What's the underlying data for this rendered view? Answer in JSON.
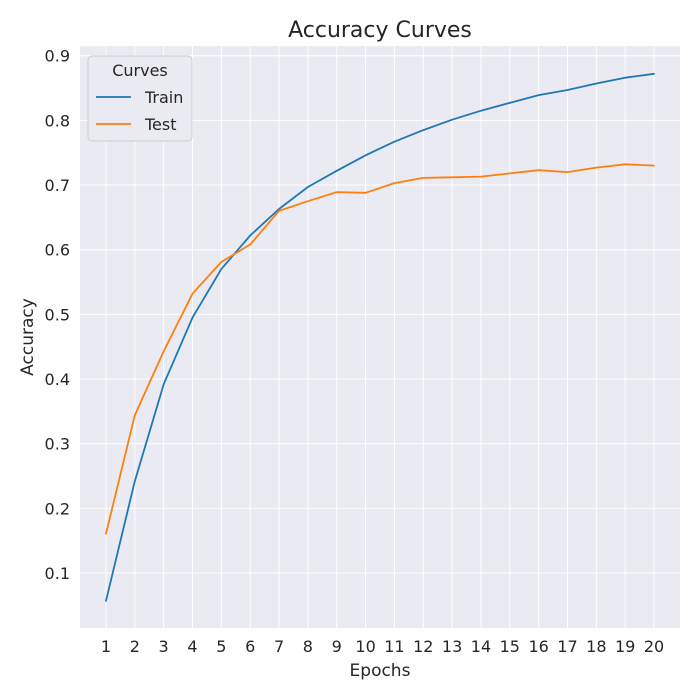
{
  "chart_data": {
    "type": "line",
    "title": "Accuracy Curves",
    "xlabel": "Epochs",
    "ylabel": "Accuracy",
    "x": [
      1,
      2,
      3,
      4,
      5,
      6,
      7,
      8,
      9,
      10,
      11,
      12,
      13,
      14,
      15,
      16,
      17,
      18,
      19,
      20
    ],
    "x_ticks": [
      "1",
      "2",
      "3",
      "4",
      "5",
      "6",
      "7",
      "8",
      "9",
      "10",
      "11",
      "12",
      "13",
      "14",
      "15",
      "16",
      "17",
      "18",
      "19",
      "20"
    ],
    "y_ticks": [
      "0.1",
      "0.2",
      "0.3",
      "0.4",
      "0.5",
      "0.6",
      "0.7",
      "0.8",
      "0.9"
    ],
    "xlim": [
      0.1,
      20.9
    ],
    "ylim": [
      0.015,
      0.915
    ],
    "grid": true,
    "legend": {
      "title": "Curves",
      "placement": "top-left"
    },
    "series": [
      {
        "name": "Train",
        "color": "#1f77b4",
        "values": [
          0.057,
          0.242,
          0.392,
          0.495,
          0.57,
          0.622,
          0.663,
          0.697,
          0.722,
          0.746,
          0.767,
          0.785,
          0.801,
          0.815,
          0.827,
          0.839,
          0.847,
          0.857,
          0.866,
          0.872
        ]
      },
      {
        "name": "Test",
        "color": "#ff7f0e",
        "values": [
          0.161,
          0.344,
          0.443,
          0.532,
          0.581,
          0.608,
          0.66,
          0.675,
          0.689,
          0.688,
          0.703,
          0.711,
          0.712,
          0.713,
          0.718,
          0.723,
          0.72,
          0.727,
          0.732,
          0.73
        ]
      }
    ]
  }
}
